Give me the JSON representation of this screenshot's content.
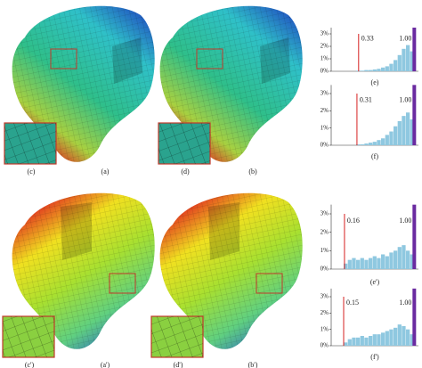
{
  "figure": {
    "panel_labels": [
      {
        "text": "(a)",
        "pos": "top-left"
      },
      {
        "text": "(b)",
        "pos": "top-right"
      },
      {
        "text": "(a')",
        "pos": "bottom-left"
      },
      {
        "text": "(b')",
        "pos": "bottom-right"
      }
    ],
    "inset_labels": [
      "(c)",
      "(d)",
      "(c')",
      "(d')"
    ],
    "histograms": [
      {
        "label": "(e)",
        "ylim": [
          0,
          3.5
        ],
        "xlim": [
          0,
          1.05
        ],
        "yticks": [
          {
            "value": 0,
            "label": "0%"
          },
          {
            "value": 1,
            "label": "1%"
          },
          {
            "value": 2,
            "label": "2%"
          },
          {
            "value": 3,
            "label": "3%"
          }
        ],
        "min": 0.33,
        "max": {
          "value": 1,
          "label": "1.00"
        },
        "bins": [
          0.3,
          0.35,
          0.4,
          0.45,
          0.5,
          0.55,
          0.6,
          0.65,
          0.7,
          0.75,
          0.8,
          0.85,
          0.9,
          0.95,
          1.0
        ],
        "counts": [
          0.05,
          0.05,
          0.1,
          0.1,
          0.15,
          0.2,
          0.3,
          0.4,
          0.6,
          0.9,
          1.3,
          1.8,
          2.1,
          1.6
        ]
      },
      {
        "label": "(f)",
        "ylim": [
          0,
          3.5
        ],
        "xlim": [
          0,
          1.05
        ],
        "yticks": [
          {
            "value": 0,
            "label": "0%"
          },
          {
            "value": 1,
            "label": "1%"
          },
          {
            "value": 2,
            "label": "2%"
          },
          {
            "value": 3,
            "label": "3%"
          }
        ],
        "min": 0.31,
        "max": {
          "value": 1,
          "label": "1.00"
        },
        "bins": [
          0.3,
          0.35,
          0.4,
          0.45,
          0.5,
          0.55,
          0.6,
          0.65,
          0.7,
          0.75,
          0.8,
          0.85,
          0.9,
          0.95,
          1.0
        ],
        "counts": [
          0.05,
          0.05,
          0.1,
          0.15,
          0.2,
          0.3,
          0.4,
          0.6,
          0.8,
          1.1,
          1.4,
          1.7,
          1.9,
          1.5
        ]
      },
      {
        "label": "(e')",
        "ylim": [
          0,
          3.5
        ],
        "xlim": [
          0,
          1.05
        ],
        "yticks": [
          {
            "value": 0,
            "label": "0%"
          },
          {
            "value": 1,
            "label": "1%"
          },
          {
            "value": 2,
            "label": "2%"
          },
          {
            "value": 3,
            "label": "3%"
          }
        ],
        "min": 0.16,
        "max": {
          "value": 1,
          "label": "1.00"
        },
        "bins": [
          0.15,
          0.2,
          0.25,
          0.3,
          0.35,
          0.4,
          0.45,
          0.5,
          0.55,
          0.6,
          0.65,
          0.7,
          0.75,
          0.8,
          0.85,
          0.9,
          0.95,
          1.0
        ],
        "counts": [
          0.3,
          0.5,
          0.6,
          0.5,
          0.6,
          0.5,
          0.6,
          0.7,
          0.6,
          0.8,
          0.7,
          0.9,
          1.0,
          1.2,
          1.3,
          1.0,
          0.8
        ]
      },
      {
        "label": "(f')",
        "ylim": [
          0,
          3.5
        ],
        "xlim": [
          0,
          1.05
        ],
        "yticks": [
          {
            "value": 0,
            "label": "0%"
          },
          {
            "value": 1,
            "label": "1%"
          },
          {
            "value": 2,
            "label": "2%"
          },
          {
            "value": 3,
            "label": "3%"
          }
        ],
        "min": 0.15,
        "max": {
          "value": 1,
          "label": "1.00"
        },
        "bins": [
          0.15,
          0.2,
          0.25,
          0.3,
          0.35,
          0.4,
          0.45,
          0.5,
          0.55,
          0.6,
          0.65,
          0.7,
          0.75,
          0.8,
          0.85,
          0.9,
          0.95,
          1.0
        ],
        "counts": [
          0.2,
          0.4,
          0.5,
          0.5,
          0.6,
          0.5,
          0.6,
          0.7,
          0.7,
          0.8,
          0.9,
          1.0,
          1.1,
          1.3,
          1.2,
          1.0,
          0.7
        ]
      }
    ]
  }
}
